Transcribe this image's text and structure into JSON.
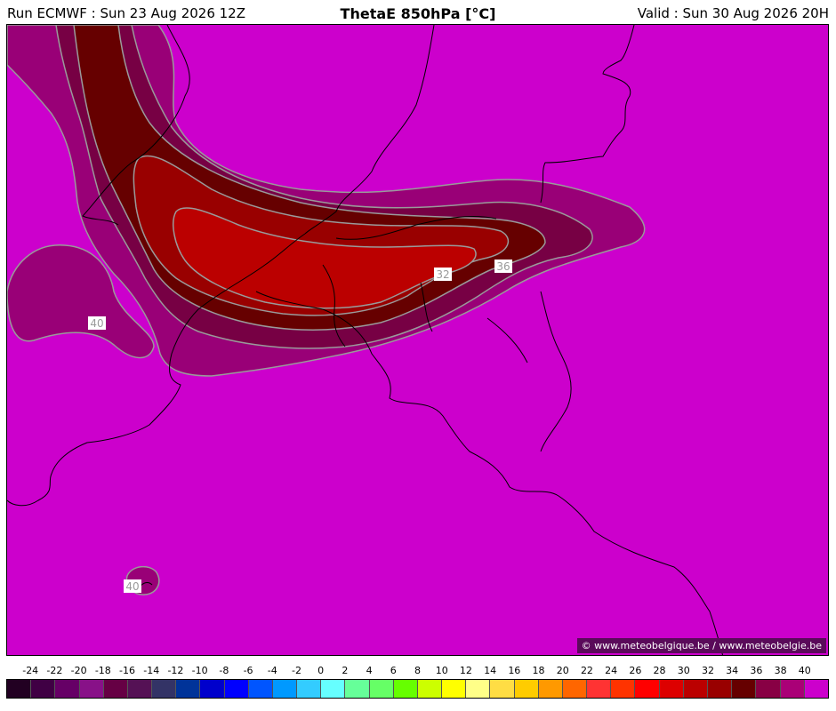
{
  "header": {
    "run": "Run ECMWF : Sun 23 Aug 2026 12Z",
    "title": "ThetaE 850hPa [°C]",
    "valid": "Valid : Sun 30 Aug 2026 20H"
  },
  "map": {
    "background_color": "#cc00cc",
    "contour_labels": [
      "32",
      "36",
      "40",
      "40"
    ],
    "credit": "© www.meteobelgique.be / www.meteobelgie.be"
  },
  "scale": {
    "labels": [
      "-24",
      "-22",
      "-20",
      "-18",
      "-16",
      "-14",
      "-12",
      "-10",
      "-8",
      "-6",
      "-4",
      "-2",
      "0",
      "2",
      "4",
      "6",
      "8",
      "10",
      "12",
      "14",
      "16",
      "18",
      "20",
      "22",
      "24",
      "26",
      "28",
      "30",
      "32",
      "34",
      "36",
      "38",
      "40"
    ],
    "colors": [
      "#220022",
      "#400044",
      "#660066",
      "#881188",
      "#660044",
      "#551155",
      "#333366",
      "#003399",
      "#0000cc",
      "#0000ff",
      "#0055ff",
      "#0099ff",
      "#33ccff",
      "#66ffff",
      "#66ff99",
      "#66ff66",
      "#66ff00",
      "#ccff00",
      "#ffff00",
      "#ffff88",
      "#ffdd44",
      "#ffcc00",
      "#ff9900",
      "#ff6600",
      "#ff3333",
      "#ff3300",
      "#ff0000",
      "#dd0000",
      "#bb0000",
      "#990000",
      "#660000",
      "#880044",
      "#aa0077",
      "#cc00cc"
    ]
  }
}
